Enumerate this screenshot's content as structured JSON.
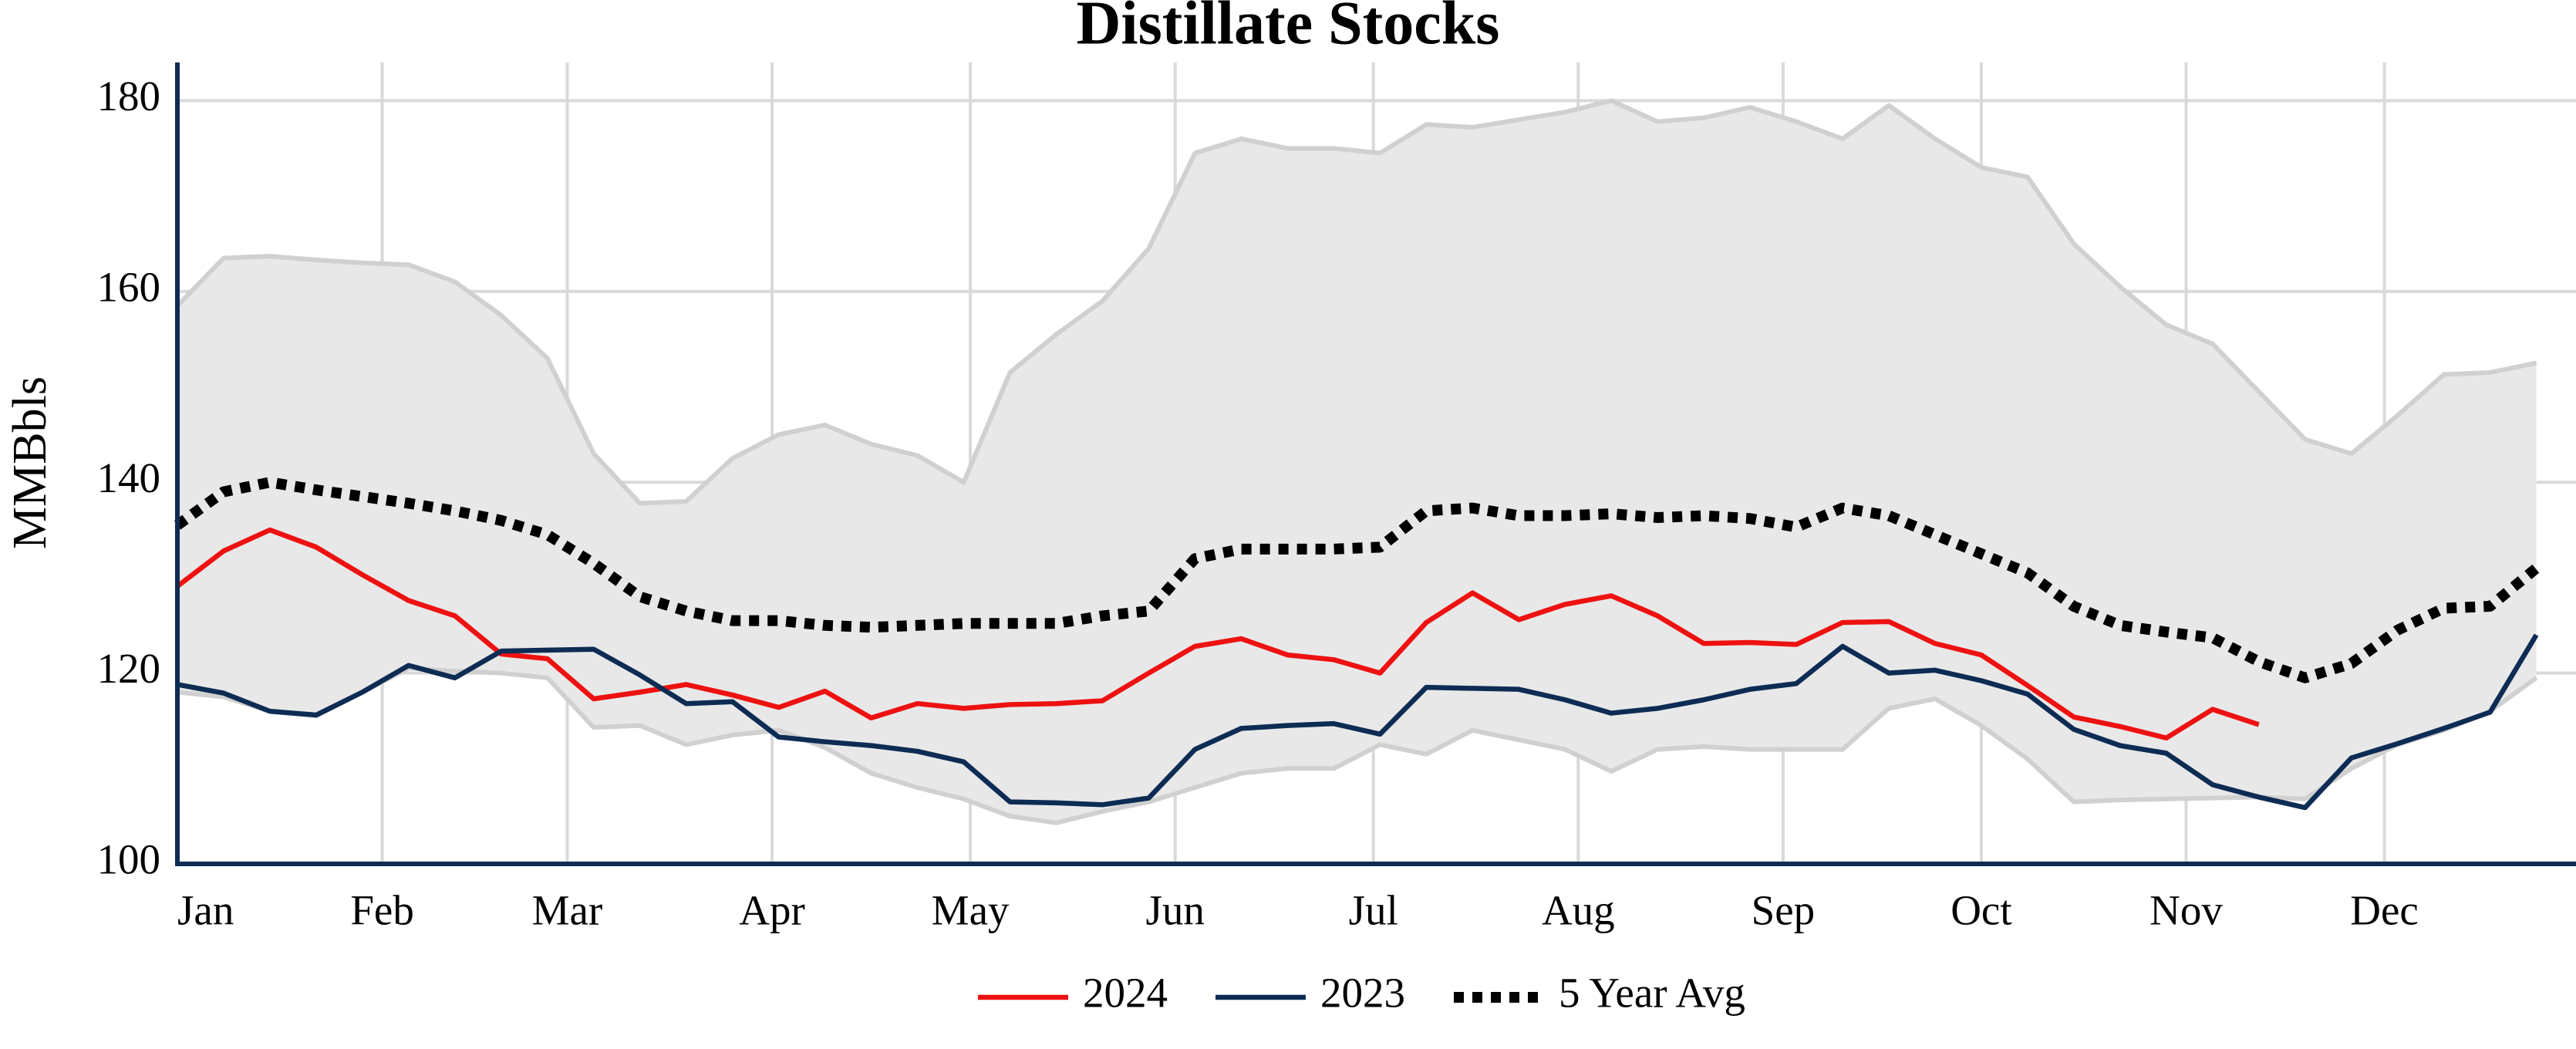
{
  "chart_data": {
    "type": "line",
    "title": "Distillate Stocks",
    "y_label": "MMBbls",
    "x": [
      0,
      7,
      14,
      21,
      28,
      35,
      42,
      49,
      56,
      63,
      70,
      77,
      84,
      91,
      98,
      105,
      112,
      119,
      126,
      133,
      140,
      147,
      154,
      161,
      168,
      175,
      182,
      189,
      196,
      203,
      210,
      217,
      224,
      231,
      238,
      245,
      252,
      259,
      266,
      273,
      280,
      287,
      294,
      301,
      308,
      315,
      322,
      329,
      336,
      343,
      350,
      357
    ],
    "xlim": [
      0,
      363
    ],
    "xticks": [
      {
        "value": 0,
        "label": "Jan"
      },
      {
        "value": 31,
        "label": "Feb"
      },
      {
        "value": 59,
        "label": "Mar"
      },
      {
        "value": 90,
        "label": "Apr"
      },
      {
        "value": 120,
        "label": "May"
      },
      {
        "value": 151,
        "label": "Jun"
      },
      {
        "value": 181,
        "label": "Jul"
      },
      {
        "value": 212,
        "label": "Aug"
      },
      {
        "value": 243,
        "label": "Sep"
      },
      {
        "value": 273,
        "label": "Oct"
      },
      {
        "value": 304,
        "label": "Nov"
      },
      {
        "value": 334,
        "label": "Dec"
      }
    ],
    "ylim": [
      100,
      184
    ],
    "yticks": [
      100,
      120,
      140,
      160,
      180
    ],
    "grid": true,
    "band": {
      "color": "#e8e8e8",
      "line_color": "#d0d0d0",
      "upper": [
        158.5,
        163.5,
        163.7,
        163.3,
        163,
        162.8,
        161,
        157.5,
        153,
        143,
        137.8,
        138,
        142.5,
        145,
        146,
        144,
        142.8,
        140,
        151.5,
        155.5,
        159,
        164.5,
        174.5,
        176,
        175,
        175,
        174.5,
        177.5,
        177.2,
        178,
        178.8,
        180,
        177.8,
        178.2,
        179.3,
        177.8,
        176,
        179.5,
        176,
        173,
        172,
        165,
        160.5,
        156.5,
        154.5,
        149.5,
        144.5,
        143,
        147,
        151.3,
        151.5,
        152.5
      ],
      "lower": [
        118,
        117.5,
        116,
        115.5,
        118,
        120.5,
        120.2,
        120,
        119.5,
        114.3,
        114.5,
        112.5,
        113.5,
        114,
        112.2,
        109.5,
        108,
        106.8,
        105,
        104.3,
        105.5,
        106.5,
        108,
        109.5,
        110,
        110,
        112.5,
        111.5,
        114,
        113,
        112,
        109.7,
        112,
        112.3,
        112,
        112,
        112,
        116.3,
        117.3,
        114.5,
        111,
        106.5,
        106.7,
        106.8,
        106.9,
        107,
        106.8,
        110,
        112.5,
        114,
        116,
        119.5
      ]
    },
    "series": [
      {
        "name": "2024",
        "color": "#ee1111",
        "dash": false,
        "values": [
          129.1,
          132.8,
          135,
          133.2,
          130.3,
          127.6,
          126,
          122,
          121.5,
          117.3,
          118,
          118.8,
          117.7,
          116.4,
          118.1,
          115.3,
          116.8,
          116.3,
          116.7,
          116.8,
          117.1,
          120,
          122.8,
          123.6,
          121.9,
          121.4,
          120,
          125.3,
          128.4,
          125.6,
          127.2,
          128.1,
          126,
          123.1,
          123.2,
          123,
          125.3,
          125.4,
          123.1,
          121.9,
          118.7,
          115.4,
          114.4,
          113.2,
          116.2,
          114.6,
          null,
          null,
          null,
          null,
          null,
          null
        ]
      },
      {
        "name": "2023",
        "color": "#0d2c54",
        "dash": false,
        "values": [
          118.8,
          117.9,
          116,
          115.6,
          118,
          120.8,
          119.5,
          122.3,
          122.4,
          122.5,
          119.8,
          116.8,
          117,
          113.3,
          112.8,
          112.4,
          111.8,
          110.7,
          106.5,
          106.4,
          106.2,
          106.9,
          112,
          114.2,
          114.5,
          114.7,
          113.6,
          118.5,
          118.4,
          118.3,
          117.2,
          115.8,
          116.3,
          117.2,
          118.3,
          118.9,
          122.8,
          120,
          120.3,
          119.2,
          117.8,
          114.1,
          112.4,
          111.6,
          108.3,
          107,
          105.9,
          111.1,
          112.6,
          114.2,
          115.9,
          124
        ]
      },
      {
        "name": "5 Year Avg",
        "color": "#000000",
        "dash": true,
        "values": [
          135.5,
          139,
          140,
          139.2,
          138.5,
          137.8,
          137,
          136,
          134.5,
          131.5,
          128,
          126.5,
          125.5,
          125.5,
          125,
          124.8,
          125,
          125.2,
          125.2,
          125.2,
          126,
          126.5,
          132,
          133,
          133,
          133,
          133.2,
          137,
          137.3,
          136.5,
          136.5,
          136.7,
          136.3,
          136.5,
          136.2,
          135.3,
          137.3,
          136.5,
          134.5,
          132.5,
          130.5,
          127,
          125,
          124.3,
          123.7,
          121.2,
          119.5,
          121,
          124.5,
          126.8,
          127,
          131
        ]
      }
    ]
  }
}
